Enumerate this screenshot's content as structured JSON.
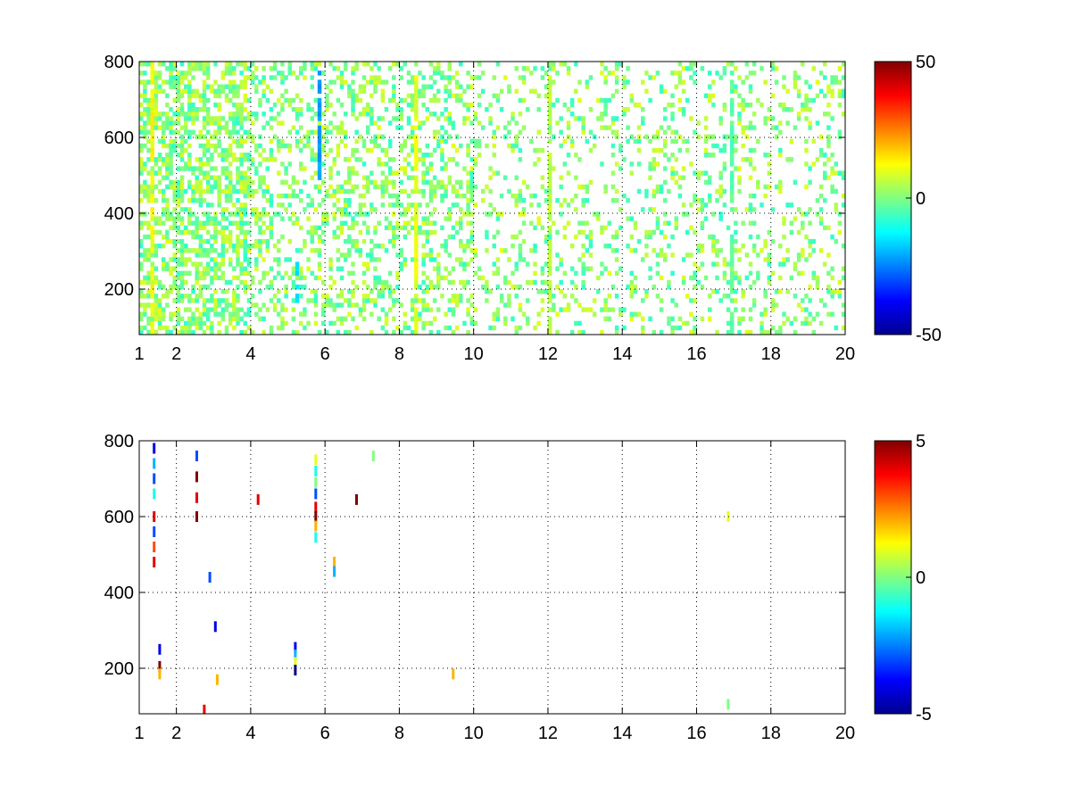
{
  "chart_data": [
    {
      "type": "heatmap",
      "title": "",
      "xlabel": "",
      "ylabel": "",
      "xlim": [
        1,
        20
      ],
      "ylim": [
        80,
        800
      ],
      "x_ticks": [
        1,
        2,
        4,
        6,
        8,
        10,
        12,
        14,
        16,
        18,
        20
      ],
      "x_tick_labels": [
        "1",
        "2",
        "4",
        "6",
        "8",
        "10",
        "12",
        "14",
        "16",
        "18",
        "20"
      ],
      "y_ticks": [
        200,
        400,
        600,
        800
      ],
      "y_tick_labels": [
        "200",
        "400",
        "600",
        "800"
      ],
      "grid": true,
      "colormap": "jet",
      "color_range": [
        -50,
        50
      ],
      "colorbar_ticks": [
        50,
        0,
        -50
      ],
      "colorbar_tick_labels": [
        "50",
        "0",
        "-50"
      ],
      "colorbar_position": "right",
      "notes": "dense scattered cells of small magnitude (cyan–yellow, roughly -10 to 10), densest near x≈1–4 and in vertical streaks at x≈4.2, 5.2, 5.8, 8.4, 12, 16.9",
      "streaks": [
        {
          "x": 1.4,
          "y": [
            80,
            800
          ],
          "value": 12
        },
        {
          "x": 5.8,
          "y": [
            480,
            780
          ],
          "value": -22
        },
        {
          "x": 5.2,
          "y": [
            150,
            280
          ],
          "value": -15
        },
        {
          "x": 8.4,
          "y": [
            80,
            760
          ],
          "value": 10
        },
        {
          "x": 12.0,
          "y": [
            80,
            760
          ],
          "value": 6
        },
        {
          "x": 16.9,
          "y": [
            80,
            800
          ],
          "value": -3
        }
      ]
    },
    {
      "type": "heatmap",
      "title": "",
      "xlabel": "",
      "ylabel": "",
      "xlim": [
        1,
        20
      ],
      "ylim": [
        80,
        800
      ],
      "x_ticks": [
        1,
        2,
        4,
        6,
        8,
        10,
        12,
        14,
        16,
        18,
        20
      ],
      "x_tick_labels": [
        "1",
        "2",
        "4",
        "6",
        "8",
        "10",
        "12",
        "14",
        "16",
        "18",
        "20"
      ],
      "y_ticks": [
        200,
        400,
        600,
        800
      ],
      "y_tick_labels": [
        "200",
        "400",
        "600",
        "800"
      ],
      "grid": true,
      "colormap": "jet",
      "color_range": [
        -5,
        5
      ],
      "colorbar_ticks": [
        5,
        0,
        -5
      ],
      "colorbar_tick_labels": [
        "5",
        "0",
        "-5"
      ],
      "colorbar_position": "right",
      "cells": [
        {
          "x": 1.4,
          "y": 780,
          "value": -4
        },
        {
          "x": 1.4,
          "y": 740,
          "value": -2
        },
        {
          "x": 1.4,
          "y": 700,
          "value": -3
        },
        {
          "x": 1.4,
          "y": 660,
          "value": -1
        },
        {
          "x": 1.4,
          "y": 600,
          "value": 4
        },
        {
          "x": 1.4,
          "y": 560,
          "value": -3
        },
        {
          "x": 1.4,
          "y": 520,
          "value": 3
        },
        {
          "x": 1.4,
          "y": 480,
          "value": 4
        },
        {
          "x": 1.55,
          "y": 250,
          "value": -4
        },
        {
          "x": 1.55,
          "y": 205,
          "value": 5
        },
        {
          "x": 1.55,
          "y": 185,
          "value": 2
        },
        {
          "x": 2.55,
          "y": 760,
          "value": -3
        },
        {
          "x": 2.55,
          "y": 705,
          "value": 5
        },
        {
          "x": 2.55,
          "y": 650,
          "value": 4
        },
        {
          "x": 2.55,
          "y": 600,
          "value": 5
        },
        {
          "x": 2.75,
          "y": 90,
          "value": 4
        },
        {
          "x": 2.9,
          "y": 440,
          "value": -3
        },
        {
          "x": 3.05,
          "y": 310,
          "value": -4
        },
        {
          "x": 3.1,
          "y": 170,
          "value": 2
        },
        {
          "x": 4.2,
          "y": 645,
          "value": 4
        },
        {
          "x": 5.2,
          "y": 255,
          "value": -4
        },
        {
          "x": 5.2,
          "y": 235,
          "value": -2
        },
        {
          "x": 5.2,
          "y": 215,
          "value": 1
        },
        {
          "x": 5.2,
          "y": 195,
          "value": -5
        },
        {
          "x": 5.75,
          "y": 750,
          "value": 1
        },
        {
          "x": 5.75,
          "y": 720,
          "value": -1
        },
        {
          "x": 5.75,
          "y": 690,
          "value": 0
        },
        {
          "x": 5.75,
          "y": 660,
          "value": -3
        },
        {
          "x": 5.75,
          "y": 625,
          "value": 4
        },
        {
          "x": 5.75,
          "y": 600,
          "value": 5
        },
        {
          "x": 5.75,
          "y": 575,
          "value": 2
        },
        {
          "x": 5.75,
          "y": 545,
          "value": -1
        },
        {
          "x": 6.25,
          "y": 480,
          "value": 2
        },
        {
          "x": 6.25,
          "y": 455,
          "value": -2
        },
        {
          "x": 6.85,
          "y": 645,
          "value": 5
        },
        {
          "x": 7.3,
          "y": 760,
          "value": 0
        },
        {
          "x": 9.45,
          "y": 185,
          "value": 2
        },
        {
          "x": 16.85,
          "y": 600,
          "value": 1
        },
        {
          "x": 16.85,
          "y": 105,
          "value": 0
        }
      ]
    }
  ]
}
